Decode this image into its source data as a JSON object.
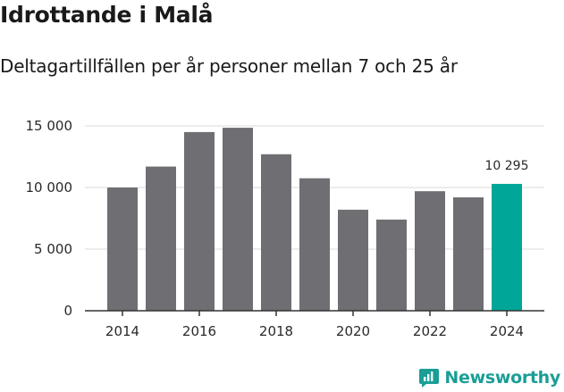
{
  "title": "Idrottande i Malå",
  "subtitle": "Deltagartillfällen per år personer mellan 7 och 25 år",
  "brand": {
    "name": "Newsworthy",
    "icon": "newsworthy-logo-icon"
  },
  "colors": {
    "bar": "#6f6e73",
    "highlight": "#00a698",
    "grid": "#d9d9d9",
    "axis": "#333333",
    "brand": "#1a9e96"
  },
  "chart_data": {
    "type": "bar",
    "title": "Idrottande i Malå",
    "subtitle": "Deltagartillfällen per år personer mellan 7 och 25 år",
    "categories": [
      "2014",
      "2015",
      "2016",
      "2017",
      "2018",
      "2019",
      "2020",
      "2021",
      "2022",
      "2023",
      "2024"
    ],
    "values": [
      10000,
      11700,
      14500,
      14850,
      12700,
      10750,
      8200,
      7400,
      9700,
      9200,
      10295
    ],
    "highlight_index": 10,
    "highlight_label": "10 295",
    "x_tick_labels": [
      "2014",
      "2016",
      "2018",
      "2020",
      "2022",
      "2024"
    ],
    "y_ticks": [
      0,
      5000,
      10000,
      15000
    ],
    "y_tick_labels": [
      "0",
      "5 000",
      "10 000",
      "15 000"
    ],
    "ylim": [
      0,
      15000
    ],
    "xlabel": "",
    "ylabel": "",
    "grid": true
  }
}
